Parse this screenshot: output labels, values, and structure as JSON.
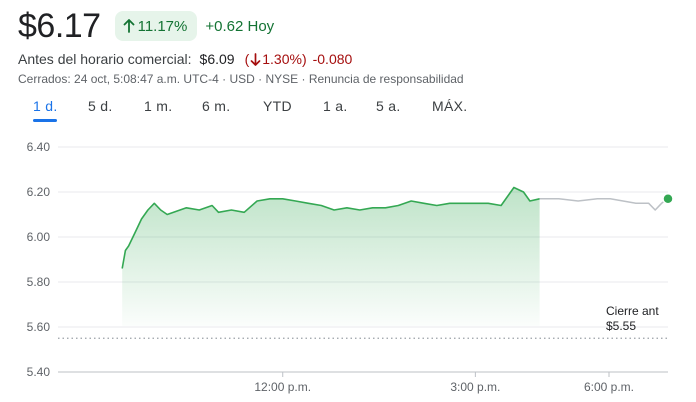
{
  "quote": {
    "price": "$6.17",
    "change_pct": "11.17%",
    "change_abs": "+0.62 Hoy"
  },
  "premarket": {
    "label": "Antes del horario comercial:",
    "price": "$6.09",
    "open_paren": "(",
    "change_pct": "1.30%)",
    "change_abs": "-0.080"
  },
  "meta": {
    "closed": "Cerrados: 24 oct, 5:08:47 a.m. UTC-4",
    "currency": "USD",
    "exchange": "NYSE",
    "disclaimer": "Renuncia de responsabilidad",
    "separator": " · "
  },
  "tabs": [
    "1 d.",
    "5 d.",
    "1 m.",
    "6 m.",
    "YTD",
    "1 a.",
    "5 a.",
    "MÁX."
  ],
  "active_tab": "1 d.",
  "prev_close": {
    "label": "Cierre ant",
    "value": "$5.55"
  },
  "colors": {
    "positive": "#137333",
    "positive_bg": "#e6f4ea",
    "negative": "#a50e0e",
    "accent": "#1a73e8",
    "line": "#34a853",
    "afterhours_line": "#bdc1c6"
  },
  "icons": {
    "up": "arrow-up-icon",
    "down": "arrow-down-icon"
  },
  "chart_data": {
    "type": "line",
    "yticks": [
      "6.40",
      "6.20",
      "6.00",
      "5.80",
      "5.60",
      "5.40"
    ],
    "ylim": [
      5.4,
      6.4
    ],
    "xticks": [
      "12:00 p.m.",
      "3:00 p.m.",
      "6:00 p.m."
    ],
    "xlim": [
      8.5,
      18.0
    ],
    "grid": true,
    "prev_close_value": 5.55,
    "series": [
      {
        "x": [
          9.5,
          9.55,
          9.6,
          9.7,
          9.8,
          9.9,
          10.0,
          10.1,
          10.2,
          10.3,
          10.5,
          10.7,
          10.9,
          11.0,
          11.2,
          11.4,
          11.6,
          11.8,
          12.0,
          12.2,
          12.4,
          12.6,
          12.8,
          13.0,
          13.2,
          13.4,
          13.6,
          13.8,
          14.0,
          14.2,
          14.4,
          14.6,
          14.8,
          15.0,
          15.2,
          15.4,
          15.5,
          15.6,
          15.75,
          15.85,
          16.0
        ],
        "y": [
          5.86,
          5.94,
          5.96,
          6.02,
          6.08,
          6.12,
          6.15,
          6.12,
          6.1,
          6.11,
          6.13,
          6.12,
          6.14,
          6.11,
          6.12,
          6.11,
          6.16,
          6.17,
          6.17,
          6.16,
          6.15,
          6.14,
          6.12,
          6.13,
          6.12,
          6.13,
          6.13,
          6.14,
          6.16,
          6.15,
          6.14,
          6.15,
          6.15,
          6.15,
          6.15,
          6.14,
          6.18,
          6.22,
          6.2,
          6.16,
          6.17
        ]
      },
      {
        "x": [
          16.0,
          16.3,
          16.6,
          16.9,
          17.1,
          17.3,
          17.5,
          17.7,
          17.8,
          17.9,
          18.0
        ],
        "y": [
          6.17,
          6.17,
          6.16,
          6.17,
          6.17,
          6.16,
          6.15,
          6.15,
          6.12,
          6.15,
          6.17
        ]
      }
    ]
  }
}
